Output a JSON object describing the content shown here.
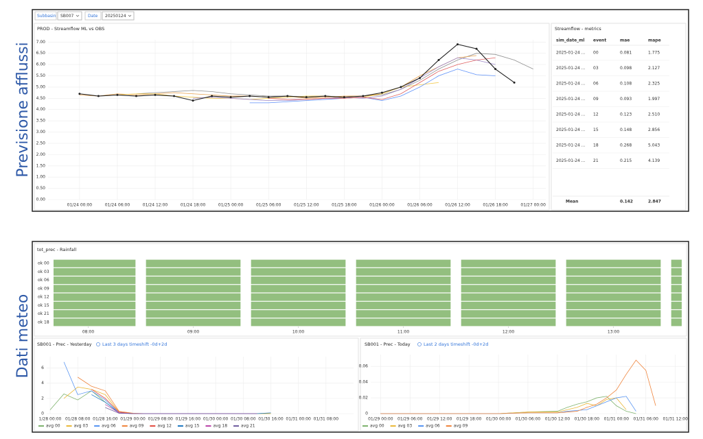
{
  "sections": [
    "Previsione afflussi",
    "Dati meteo"
  ],
  "filters": [
    {
      "label": "Subbasin",
      "value": "SB007"
    },
    {
      "label": "Date",
      "value": "20250124"
    }
  ],
  "table": {
    "title": "Streamflow - metrics",
    "columns": [
      "sim_date_ml",
      "event",
      "mae",
      "mape"
    ],
    "rows": [
      [
        "2025-01-24 ...",
        "00",
        "0.081",
        "1.775"
      ],
      [
        "2025-01-24 ...",
        "03",
        "0.098",
        "2.127"
      ],
      [
        "2025-01-24 ...",
        "06",
        "0.108",
        "2.325"
      ],
      [
        "2025-01-24 ...",
        "09",
        "0.093",
        "1.997"
      ],
      [
        "2025-01-24 ...",
        "12",
        "0.123",
        "2.510"
      ],
      [
        "2025-01-24 ...",
        "15",
        "0.148",
        "2.856"
      ],
      [
        "2025-01-24 ...",
        "18",
        "0.268",
        "5.043"
      ],
      [
        "2025-01-24 ...",
        "21",
        "0.215",
        "4.139"
      ]
    ],
    "footer": [
      "Mean",
      "0.142",
      "2.847"
    ]
  },
  "chart_data": [
    {
      "type": "line",
      "title": "PROD - Streamflow ML vs OBS",
      "grid": true,
      "x": [
        0,
        3,
        6,
        9,
        12,
        15,
        18,
        21,
        24,
        27,
        30,
        33,
        36,
        39,
        42,
        45,
        48,
        51,
        54,
        57,
        60,
        63,
        66,
        69,
        72
      ],
      "xlim": [
        -5,
        74
      ],
      "xticks": [
        {
          "value": 0,
          "label": "01/24 00:00"
        },
        {
          "value": 6,
          "label": "01/24 06:00"
        },
        {
          "value": 12,
          "label": "01/24 12:00"
        },
        {
          "value": 18,
          "label": "01/24 18:00"
        },
        {
          "value": 24,
          "label": "01/25 00:00"
        },
        {
          "value": 30,
          "label": "01/25 06:00"
        },
        {
          "value": 36,
          "label": "01/25 12:00"
        },
        {
          "value": 42,
          "label": "01/25 18:00"
        },
        {
          "value": 48,
          "label": "01/26 00:00"
        },
        {
          "value": 54,
          "label": "01/26 06:00"
        },
        {
          "value": 60,
          "label": "01/26 12:00"
        },
        {
          "value": 66,
          "label": "01/26 18:00"
        },
        {
          "value": 72,
          "label": "01/27 00:00"
        }
      ],
      "ylim": [
        0,
        7.1
      ],
      "yticks": [
        {
          "value": 0,
          "label": "0.00"
        },
        {
          "value": 0.5,
          "label": "0.50"
        },
        {
          "value": 1,
          "label": "1.00"
        },
        {
          "value": 1.5,
          "label": "1.50"
        },
        {
          "value": 2,
          "label": "2.00"
        },
        {
          "value": 2.5,
          "label": "2.50"
        },
        {
          "value": 3,
          "label": "3.00"
        },
        {
          "value": 3.5,
          "label": "3.50"
        },
        {
          "value": 4,
          "label": "4.00"
        },
        {
          "value": 4.5,
          "label": "4.50"
        },
        {
          "value": 5,
          "label": "5.00"
        },
        {
          "value": 5.5,
          "label": "5.50"
        },
        {
          "value": 6,
          "label": "6.00"
        },
        {
          "value": 6.5,
          "label": "6.50"
        },
        {
          "value": 7,
          "label": "7.00"
        }
      ],
      "series": [
        {
          "color": "#8f8f8f",
          "values": [
            null,
            null,
            null,
            4.7,
            4.75,
            4.8,
            4.85,
            4.8,
            4.7,
            4.65,
            4.6,
            4.6,
            4.55,
            4.6,
            4.55,
            4.6,
            4.65,
            4.9,
            5.3,
            5.8,
            6.2,
            6.5,
            6.45,
            6.2,
            5.8
          ]
        },
        {
          "color": "#e8a04b",
          "values": [
            4.65,
            4.6,
            4.7,
            4.65,
            4.7,
            4.75,
            4.7,
            4.65,
            4.6,
            4.6,
            4.55,
            4.6,
            4.5,
            4.55,
            4.6,
            4.6,
            4.7,
            5.0,
            5.5,
            5.9,
            6.3,
            6.4,
            null,
            null,
            null
          ]
        },
        {
          "color": "#f2c94c",
          "values": [
            null,
            null,
            4.65,
            4.7,
            4.7,
            4.6,
            4.55,
            4.5,
            4.5,
            4.45,
            4.5,
            4.55,
            4.6,
            4.6,
            4.5,
            4.55,
            4.7,
            5.0,
            5.1,
            5.2,
            null,
            null,
            null,
            null,
            null
          ]
        },
        {
          "color": "#5b8ff9",
          "values": [
            null,
            null,
            null,
            null,
            null,
            null,
            null,
            null,
            null,
            4.3,
            4.3,
            4.35,
            4.4,
            4.45,
            4.5,
            4.55,
            4.4,
            4.6,
            5.0,
            5.5,
            5.8,
            5.55,
            5.5,
            null,
            null
          ]
        },
        {
          "color": "#9b86c7",
          "values": [
            null,
            null,
            null,
            null,
            null,
            null,
            4.5,
            4.55,
            4.5,
            4.45,
            4.4,
            4.4,
            4.45,
            4.5,
            4.55,
            4.5,
            4.6,
            4.9,
            5.4,
            5.9,
            6.3,
            6.2,
            6.0,
            null,
            null
          ]
        },
        {
          "color": "#e06060",
          "values": [
            null,
            null,
            null,
            null,
            null,
            null,
            null,
            null,
            null,
            null,
            4.5,
            4.45,
            4.45,
            4.5,
            4.5,
            4.55,
            4.45,
            4.7,
            5.2,
            5.7,
            6.0,
            6.2,
            6.3,
            null,
            null
          ]
        },
        {
          "color": "#222222",
          "markers": true,
          "values": [
            4.7,
            4.6,
            4.65,
            4.6,
            4.65,
            4.6,
            4.4,
            4.6,
            4.55,
            4.6,
            4.55,
            4.6,
            4.55,
            4.6,
            4.55,
            4.6,
            4.75,
            5.0,
            5.4,
            6.2,
            6.9,
            6.7,
            5.8,
            5.2,
            null
          ]
        }
      ]
    },
    {
      "type": "timeline",
      "title": "tot_prec - Rainfall",
      "color": "#93bf7f",
      "rows": [
        "ok 00",
        "ok 03",
        "ok 06",
        "ok 09",
        "ok 12",
        "ok 15",
        "ok 21",
        "ok 18"
      ],
      "segments": [
        [
          7.67,
          8.45
        ],
        [
          8.55,
          9.45
        ],
        [
          9.55,
          10.45
        ],
        [
          10.55,
          11.45
        ],
        [
          11.55,
          12.45
        ],
        [
          12.55,
          13.45
        ],
        [
          13.55,
          13.65
        ]
      ],
      "xlim": [
        7.67,
        13.65
      ],
      "xticks": [
        {
          "value": 8,
          "label": "08:00"
        },
        {
          "value": 9,
          "label": "09:00"
        },
        {
          "value": 10,
          "label": "10:00"
        },
        {
          "value": 11,
          "label": "11:00"
        },
        {
          "value": 12,
          "label": "12:00"
        },
        {
          "value": 13,
          "label": "13:00"
        }
      ]
    },
    {
      "type": "line",
      "title": "SB001 - Prec - Yesterday",
      "link": "Last 3 days timeshift -0d+2d",
      "grid": true,
      "legend": "bottom",
      "x": [
        0,
        4,
        8,
        12,
        16,
        20,
        24,
        28,
        32,
        36,
        40,
        44,
        48,
        52,
        56,
        60,
        64
      ],
      "xlim": [
        -1,
        88
      ],
      "xticks": [
        {
          "value": 0,
          "label": "1/28 00:00"
        },
        {
          "value": 8,
          "label": "01/28 08:00"
        },
        {
          "value": 16,
          "label": "01/28 16:00"
        },
        {
          "value": 24,
          "label": "01/29 00:00"
        },
        {
          "value": 32,
          "label": "01/29 08:00"
        },
        {
          "value": 40,
          "label": "01/29 16:00"
        },
        {
          "value": 48,
          "label": "01/30 00:00"
        },
        {
          "value": 56,
          "label": "01/30 08:00"
        },
        {
          "value": 64,
          "label": "01/30 16:00"
        },
        {
          "value": 72,
          "label": "01/31 00:00"
        },
        {
          "value": 80,
          "label": "01/31 08:00"
        }
      ],
      "ylim": [
        0,
        7.5
      ],
      "yticks": [
        0,
        2,
        4,
        6
      ],
      "series": [
        {
          "name": "avg 00",
          "color": "#7eb26d",
          "values": [
            0.5,
            2.6,
            1.8,
            3.0,
            1.5,
            0.1,
            0,
            0,
            0,
            0,
            0,
            0,
            0,
            0,
            0,
            0,
            0
          ]
        },
        {
          "name": "avg 03",
          "color": "#eab839",
          "values": [
            null,
            2.0,
            3.5,
            3.2,
            2.5,
            0.2,
            0,
            0,
            0,
            0,
            0,
            0,
            0,
            0,
            0,
            0,
            0
          ]
        },
        {
          "name": "avg 06",
          "color": "#5794f2",
          "values": [
            null,
            6.8,
            2.5,
            3.0,
            1.8,
            0.1,
            0,
            0,
            0,
            0,
            0,
            0,
            0,
            0,
            0,
            0,
            null
          ]
        },
        {
          "name": "avg 09",
          "color": "#ef843c",
          "values": [
            null,
            null,
            4.8,
            3.6,
            3.0,
            0.3,
            0.05,
            0,
            0,
            0,
            0,
            0,
            0,
            0,
            0,
            0,
            null
          ]
        },
        {
          "name": "avg 12",
          "color": "#e24d42",
          "values": [
            null,
            null,
            null,
            3.2,
            2.0,
            0.2,
            0,
            0,
            0,
            0,
            0,
            0,
            0,
            0,
            0,
            null,
            null
          ]
        },
        {
          "name": "avg 15",
          "color": "#1f78c1",
          "values": [
            null,
            null,
            null,
            2.5,
            1.5,
            0.1,
            0,
            0,
            0,
            0,
            0,
            0,
            0,
            0,
            0,
            0,
            0.1
          ]
        },
        {
          "name": "avg 18",
          "color": "#ba43a9",
          "values": [
            null,
            null,
            null,
            null,
            1.2,
            0.1,
            0,
            0,
            0,
            0,
            0,
            0,
            0,
            0,
            0,
            0,
            null
          ]
        },
        {
          "name": "avg 21",
          "color": "#705da0",
          "values": [
            null,
            null,
            null,
            null,
            0.8,
            0.05,
            0,
            0,
            0,
            0,
            0,
            0,
            0,
            0,
            0,
            0,
            null
          ]
        }
      ]
    },
    {
      "type": "line",
      "title": "SB001 - Prec - Today",
      "link": "Last 2 days timeshift -0d+2d",
      "grid": true,
      "legend": "bottom",
      "x": [
        0,
        6,
        12,
        18,
        24,
        30,
        36,
        38,
        40,
        42,
        44,
        46,
        48,
        50,
        52,
        54,
        56
      ],
      "xlim": [
        -2,
        62
      ],
      "xticks": [
        {
          "value": 0,
          "label": "01/29 00:00"
        },
        {
          "value": 6,
          "label": "01/29 06:00"
        },
        {
          "value": 12,
          "label": "01/29 12:00"
        },
        {
          "value": 18,
          "label": "01/29 18:00"
        },
        {
          "value": 24,
          "label": "01/30 00:00"
        },
        {
          "value": 30,
          "label": "01/30 06:00"
        },
        {
          "value": 36,
          "label": "01/30 12:00"
        },
        {
          "value": 42,
          "label": "01/30 18:00"
        },
        {
          "value": 48,
          "label": "01/31 00:00"
        },
        {
          "value": 54,
          "label": "01/31 06:00"
        },
        {
          "value": 60,
          "label": "01/31 12:00"
        }
      ],
      "ylim": [
        0,
        0.075
      ],
      "yticks": [
        0,
        0.02,
        0.04,
        0.06
      ],
      "series": [
        {
          "name": "avg 00",
          "color": "#7eb26d",
          "values": [
            0,
            0,
            0,
            0,
            0,
            0.002,
            0.003,
            0.008,
            0.012,
            0.015,
            0.02,
            0.022,
            0.01,
            0.003,
            0,
            null,
            null
          ]
        },
        {
          "name": "avg 03",
          "color": "#eab839",
          "values": [
            0,
            0,
            0,
            0,
            0,
            0.002,
            0.002,
            0.005,
            0.008,
            0.013,
            0.01,
            0.018,
            0.02,
            0.005,
            null,
            null,
            null
          ]
        },
        {
          "name": "avg 06",
          "color": "#5794f2",
          "values": [
            0,
            0,
            0,
            0,
            0,
            0.001,
            0.001,
            0.003,
            0.004,
            0.005,
            0.01,
            0.015,
            0.02,
            0.022,
            0.003,
            null,
            null
          ]
        },
        {
          "name": "avg 09",
          "color": "#ef843c",
          "values": [
            0,
            0,
            0,
            0,
            0,
            0.001,
            0.001,
            0.002,
            0.003,
            0.008,
            0.012,
            0.02,
            0.03,
            0.05,
            0.068,
            0.055,
            0.01
          ]
        }
      ]
    }
  ]
}
